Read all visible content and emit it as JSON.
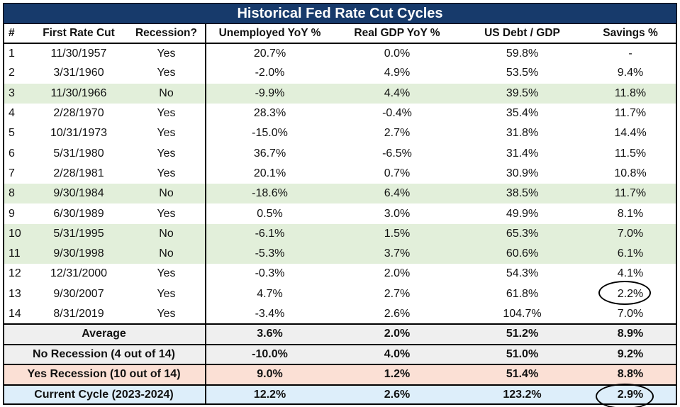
{
  "title": "Historical Fed Rate Cut Cycles",
  "headers": [
    "#",
    "First Rate Cut",
    "Recession?",
    "Unemployed YoY %",
    "Real GDP YoY %",
    "US Debt / GDP",
    "Savings %"
  ],
  "rows": [
    {
      "num": "1",
      "date": "11/30/1957",
      "recession": "Yes",
      "unemp": "20.7%",
      "gdp": "0.0%",
      "debt": "59.8%",
      "savings": "-",
      "highlight": false
    },
    {
      "num": "2",
      "date": "3/31/1960",
      "recession": "Yes",
      "unemp": "-2.0%",
      "gdp": "4.9%",
      "debt": "53.5%",
      "savings": "9.4%",
      "highlight": false
    },
    {
      "num": "3",
      "date": "11/30/1966",
      "recession": "No",
      "unemp": "-9.9%",
      "gdp": "4.4%",
      "debt": "39.5%",
      "savings": "11.8%",
      "highlight": true
    },
    {
      "num": "4",
      "date": "2/28/1970",
      "recession": "Yes",
      "unemp": "28.3%",
      "gdp": "-0.4%",
      "debt": "35.4%",
      "savings": "11.7%",
      "highlight": false
    },
    {
      "num": "5",
      "date": "10/31/1973",
      "recession": "Yes",
      "unemp": "-15.0%",
      "gdp": "2.7%",
      "debt": "31.8%",
      "savings": "14.4%",
      "highlight": false
    },
    {
      "num": "6",
      "date": "5/31/1980",
      "recession": "Yes",
      "unemp": "36.7%",
      "gdp": "-6.5%",
      "debt": "31.4%",
      "savings": "11.5%",
      "highlight": false
    },
    {
      "num": "7",
      "date": "2/28/1981",
      "recession": "Yes",
      "unemp": "20.1%",
      "gdp": "0.7%",
      "debt": "30.9%",
      "savings": "10.8%",
      "highlight": false
    },
    {
      "num": "8",
      "date": "9/30/1984",
      "recession": "No",
      "unemp": "-18.6%",
      "gdp": "6.4%",
      "debt": "38.5%",
      "savings": "11.7%",
      "highlight": true
    },
    {
      "num": "9",
      "date": "6/30/1989",
      "recession": "Yes",
      "unemp": "0.5%",
      "gdp": "3.0%",
      "debt": "49.9%",
      "savings": "8.1%",
      "highlight": false
    },
    {
      "num": "10",
      "date": "5/31/1995",
      "recession": "No",
      "unemp": "-6.1%",
      "gdp": "1.5%",
      "debt": "65.3%",
      "savings": "7.0%",
      "highlight": true
    },
    {
      "num": "11",
      "date": "9/30/1998",
      "recession": "No",
      "unemp": "-5.3%",
      "gdp": "3.7%",
      "debt": "60.6%",
      "savings": "6.1%",
      "highlight": true
    },
    {
      "num": "12",
      "date": "12/31/2000",
      "recession": "Yes",
      "unemp": "-0.3%",
      "gdp": "2.0%",
      "debt": "54.3%",
      "savings": "4.1%",
      "highlight": false
    },
    {
      "num": "13",
      "date": "9/30/2007",
      "recession": "Yes",
      "unemp": "4.7%",
      "gdp": "2.7%",
      "debt": "61.8%",
      "savings": "2.2%",
      "highlight": false
    },
    {
      "num": "14",
      "date": "8/31/2019",
      "recession": "Yes",
      "unemp": "-3.4%",
      "gdp": "2.6%",
      "debt": "104.7%",
      "savings": "7.0%",
      "highlight": false
    }
  ],
  "summary": [
    {
      "key": "avg",
      "label": "Average",
      "unemp": "3.6%",
      "gdp": "2.0%",
      "debt": "51.2%",
      "savings": "8.9%"
    },
    {
      "key": "norec",
      "label": "No Recession (4 out of 14)",
      "unemp": "-10.0%",
      "gdp": "4.0%",
      "debt": "51.0%",
      "savings": "9.2%"
    },
    {
      "key": "yesrec",
      "label": "Yes Recession (10 out of 14)",
      "unemp": "9.0%",
      "gdp": "1.2%",
      "debt": "51.4%",
      "savings": "8.8%"
    },
    {
      "key": "current",
      "label": "Current Cycle (2023-2024)",
      "unemp": "12.2%",
      "gdp": "2.6%",
      "debt": "123.2%",
      "savings": "2.9%"
    }
  ],
  "colors": {
    "title_bg": "#173a6b",
    "highlight_green": "#e2efda",
    "summary_grey": "#efefef",
    "summary_salmon": "#fbe0d5",
    "summary_blue": "#ddeefa"
  }
}
